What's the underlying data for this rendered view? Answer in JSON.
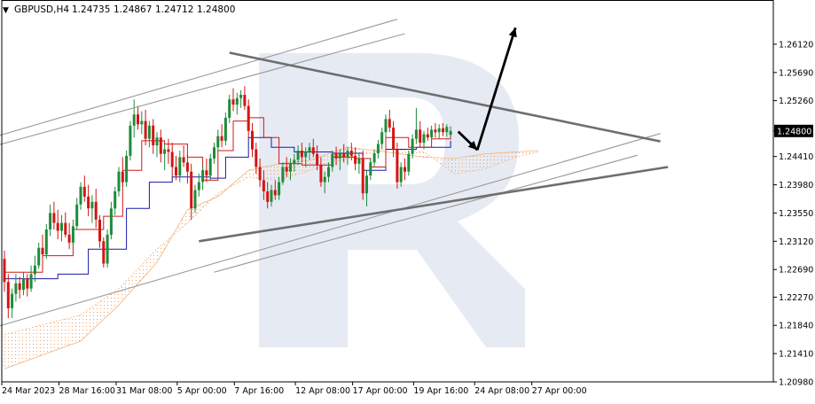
{
  "header": {
    "symbol": "GBPUSD,H4",
    "open": "1.24735",
    "high": "1.24867",
    "low": "1.24712",
    "close": "1.24800",
    "triangle": "▼"
  },
  "chart_data": {
    "type": "candlestick",
    "title": "GBPUSD,H4",
    "ylim": [
      1.2098,
      1.2655
    ],
    "y_ticks": [
      "1.26120",
      "1.25690",
      "1.25260",
      "1.24800",
      "1.24410",
      "1.23980",
      "1.23550",
      "1.23120",
      "1.22690",
      "1.22270",
      "1.21840",
      "1.21410",
      "1.20980"
    ],
    "current_price": "1.24800",
    "x_ticks": [
      "24 Mar 2023",
      "28 Mar 16:00",
      "31 Mar 08:00",
      "5 Apr 00:00",
      "7 Apr 16:00",
      "12 Apr 08:00",
      "17 Apr 00:00",
      "19 Apr 16:00",
      "24 Apr 08:00",
      "27 Apr 00:00"
    ],
    "bars_total": 118,
    "x_tick_bars": [
      0,
      15,
      30,
      46,
      61,
      77,
      92,
      108,
      124,
      139
    ],
    "candles": [
      [
        1.2285,
        1.2298,
        1.2235,
        1.225
      ],
      [
        1.225,
        1.2262,
        1.2195,
        1.221
      ],
      [
        1.221,
        1.224,
        1.2195,
        1.2232
      ],
      [
        1.2232,
        1.2262,
        1.222,
        1.2248
      ],
      [
        1.2248,
        1.2258,
        1.2225,
        1.2238
      ],
      [
        1.2238,
        1.2265,
        1.223,
        1.2255
      ],
      [
        1.2255,
        1.2262,
        1.2228,
        1.224
      ],
      [
        1.224,
        1.2275,
        1.2235,
        1.2262
      ],
      [
        1.2262,
        1.229,
        1.225,
        1.2275
      ],
      [
        1.2275,
        1.231,
        1.227,
        1.2302
      ],
      [
        1.2302,
        1.2322,
        1.2288,
        1.2292
      ],
      [
        1.2292,
        1.2338,
        1.2285,
        1.233
      ],
      [
        1.233,
        1.2368,
        1.232,
        1.2355
      ],
      [
        1.2355,
        1.2372,
        1.233,
        1.234
      ],
      [
        1.234,
        1.236,
        1.2315,
        1.2328
      ],
      [
        1.2328,
        1.2352,
        1.2312,
        1.234
      ],
      [
        1.234,
        1.2356,
        1.2318,
        1.2322
      ],
      [
        1.2322,
        1.234,
        1.23,
        1.231
      ],
      [
        1.231,
        1.2345,
        1.2305,
        1.2335
      ],
      [
        1.2335,
        1.2378,
        1.233,
        1.2368
      ],
      [
        1.2368,
        1.2402,
        1.236,
        1.2395
      ],
      [
        1.2395,
        1.2412,
        1.2372,
        1.238
      ],
      [
        1.238,
        1.2398,
        1.235,
        1.2362
      ],
      [
        1.2362,
        1.2382,
        1.234,
        1.2372
      ],
      [
        1.2372,
        1.2392,
        1.2332,
        1.2345
      ],
      [
        1.2345,
        1.2352,
        1.2302,
        1.2312
      ],
      [
        1.2312,
        1.2318,
        1.2272,
        1.2278
      ],
      [
        1.2278,
        1.233,
        1.2272,
        1.2322
      ],
      [
        1.2322,
        1.2372,
        1.2315,
        1.2362
      ],
      [
        1.2362,
        1.2395,
        1.2352,
        1.2388
      ],
      [
        1.2388,
        1.2425,
        1.238,
        1.2418
      ],
      [
        1.2418,
        1.244,
        1.2395,
        1.2402
      ],
      [
        1.2402,
        1.245,
        1.2395,
        1.2442
      ],
      [
        1.2442,
        1.2495,
        1.2435,
        1.2488
      ],
      [
        1.2488,
        1.2528,
        1.247,
        1.2505
      ],
      [
        1.2505,
        1.2518,
        1.2482,
        1.249
      ],
      [
        1.249,
        1.251,
        1.2475,
        1.2495
      ],
      [
        1.2495,
        1.2512,
        1.2458,
        1.2468
      ],
      [
        1.2468,
        1.2495,
        1.2455,
        1.2488
      ],
      [
        1.2488,
        1.2498,
        1.2445,
        1.2458
      ],
      [
        1.2458,
        1.2478,
        1.244,
        1.247
      ],
      [
        1.247,
        1.2482,
        1.2432,
        1.2445
      ],
      [
        1.2445,
        1.246,
        1.242,
        1.2452
      ],
      [
        1.2452,
        1.2468,
        1.243,
        1.2448
      ],
      [
        1.2448,
        1.2462,
        1.241,
        1.2425
      ],
      [
        1.2425,
        1.2442,
        1.2405,
        1.2412
      ],
      [
        1.2412,
        1.245,
        1.2402,
        1.244
      ],
      [
        1.244,
        1.2458,
        1.2425,
        1.2432
      ],
      [
        1.2432,
        1.2445,
        1.24,
        1.2418
      ],
      [
        1.2418,
        1.243,
        1.2345,
        1.2362
      ],
      [
        1.2362,
        1.2398,
        1.2355,
        1.239
      ],
      [
        1.239,
        1.2415,
        1.238,
        1.2402
      ],
      [
        1.2402,
        1.2428,
        1.239,
        1.242
      ],
      [
        1.242,
        1.2438,
        1.2402,
        1.2412
      ],
      [
        1.2412,
        1.2445,
        1.2405,
        1.2438
      ],
      [
        1.2438,
        1.2462,
        1.243,
        1.2455
      ],
      [
        1.2455,
        1.2482,
        1.2448,
        1.2472
      ],
      [
        1.2472,
        1.249,
        1.2455,
        1.2465
      ],
      [
        1.2465,
        1.2508,
        1.2458,
        1.25
      ],
      [
        1.25,
        1.2535,
        1.2492,
        1.2528
      ],
      [
        1.2528,
        1.2545,
        1.251,
        1.252
      ],
      [
        1.252,
        1.2538,
        1.2505,
        1.253
      ],
      [
        1.253,
        1.2542,
        1.2515,
        1.2535
      ],
      [
        1.2535,
        1.2548,
        1.2512,
        1.2518
      ],
      [
        1.2518,
        1.2528,
        1.247,
        1.248
      ],
      [
        1.248,
        1.2492,
        1.244,
        1.2452
      ],
      [
        1.2452,
        1.2462,
        1.2415,
        1.2425
      ],
      [
        1.2425,
        1.2438,
        1.2395,
        1.2405
      ],
      [
        1.2405,
        1.242,
        1.2375,
        1.2388
      ],
      [
        1.2388,
        1.2402,
        1.2362,
        1.2372
      ],
      [
        1.2372,
        1.2398,
        1.2365,
        1.239
      ],
      [
        1.239,
        1.2405,
        1.2375,
        1.2382
      ],
      [
        1.2382,
        1.241,
        1.2375,
        1.2402
      ],
      [
        1.2402,
        1.2432,
        1.2398,
        1.2425
      ],
      [
        1.2425,
        1.244,
        1.241,
        1.2418
      ],
      [
        1.2418,
        1.2438,
        1.2405,
        1.243
      ],
      [
        1.243,
        1.2445,
        1.2418,
        1.2436
      ],
      [
        1.2436,
        1.2458,
        1.2428,
        1.245
      ],
      [
        1.245,
        1.2462,
        1.2432,
        1.244
      ],
      [
        1.244,
        1.2455,
        1.2425,
        1.2448
      ],
      [
        1.2448,
        1.2462,
        1.2436,
        1.2455
      ],
      [
        1.2455,
        1.2468,
        1.244,
        1.2445
      ],
      [
        1.2445,
        1.2458,
        1.242,
        1.2428
      ],
      [
        1.2428,
        1.244,
        1.2395,
        1.2402
      ],
      [
        1.2402,
        1.2418,
        1.2385,
        1.241
      ],
      [
        1.241,
        1.2432,
        1.2402,
        1.2425
      ],
      [
        1.2425,
        1.245,
        1.2418,
        1.2445
      ],
      [
        1.2445,
        1.2456,
        1.2428,
        1.2438
      ],
      [
        1.2438,
        1.2452,
        1.242,
        1.2446
      ],
      [
        1.2446,
        1.246,
        1.2432,
        1.244
      ],
      [
        1.244,
        1.2456,
        1.2428,
        1.245
      ],
      [
        1.245,
        1.2462,
        1.2435,
        1.2442
      ],
      [
        1.2442,
        1.2455,
        1.242,
        1.243
      ],
      [
        1.243,
        1.2445,
        1.2415,
        1.2438
      ],
      [
        1.2438,
        1.245,
        1.2375,
        1.2385
      ],
      [
        1.2385,
        1.242,
        1.2365,
        1.2412
      ],
      [
        1.2412,
        1.2438,
        1.2405,
        1.2432
      ],
      [
        1.2432,
        1.2452,
        1.2425,
        1.2446
      ],
      [
        1.2446,
        1.2466,
        1.2438,
        1.246
      ],
      [
        1.246,
        1.2485,
        1.2452,
        1.2478
      ],
      [
        1.2478,
        1.2505,
        1.247,
        1.2498
      ],
      [
        1.2498,
        1.2512,
        1.2478,
        1.2485
      ],
      [
        1.2485,
        1.2495,
        1.244,
        1.2452
      ],
      [
        1.2452,
        1.2462,
        1.2392,
        1.2402
      ],
      [
        1.2402,
        1.2432,
        1.2395,
        1.2425
      ],
      [
        1.2425,
        1.2438,
        1.2405,
        1.2418
      ],
      [
        1.2418,
        1.245,
        1.2412,
        1.2445
      ],
      [
        1.2445,
        1.2475,
        1.2438,
        1.2468
      ],
      [
        1.2468,
        1.2515,
        1.246,
        1.2482
      ],
      [
        1.2482,
        1.2495,
        1.2455,
        1.2462
      ],
      [
        1.2462,
        1.248,
        1.2452,
        1.2475
      ],
      [
        1.2475,
        1.2485,
        1.2465,
        1.247
      ],
      [
        1.247,
        1.2488,
        1.2462,
        1.2482
      ],
      [
        1.2482,
        1.2492,
        1.247,
        1.2478
      ],
      [
        1.2478,
        1.249,
        1.2468,
        1.2484
      ],
      [
        1.2484,
        1.2492,
        1.2472,
        1.2478
      ],
      [
        1.2478,
        1.249,
        1.2471,
        1.2486
      ],
      [
        1.2474,
        1.2487,
        1.2471,
        1.248
      ]
    ],
    "tenkan": [
      [
        0,
        1.2265
      ],
      [
        10,
        1.229
      ],
      [
        18,
        1.233
      ],
      [
        26,
        1.235
      ],
      [
        31,
        1.242
      ],
      [
        36,
        1.2465
      ],
      [
        42,
        1.246
      ],
      [
        48,
        1.244
      ],
      [
        52,
        1.2405
      ],
      [
        56,
        1.245
      ],
      [
        60,
        1.2495
      ],
      [
        64,
        1.25
      ],
      [
        68,
        1.247
      ],
      [
        72,
        1.243
      ],
      [
        78,
        1.2428
      ],
      [
        86,
        1.244
      ],
      [
        92,
        1.2438
      ],
      [
        96,
        1.2425
      ],
      [
        100,
        1.247
      ],
      [
        106,
        1.2455
      ],
      [
        112,
        1.2468
      ],
      [
        117,
        1.2478
      ]
    ],
    "kijun": [
      [
        0,
        1.2255
      ],
      [
        14,
        1.2262
      ],
      [
        22,
        1.23
      ],
      [
        32,
        1.2362
      ],
      [
        38,
        1.2402
      ],
      [
        44,
        1.241
      ],
      [
        54,
        1.2408
      ],
      [
        58,
        1.244
      ],
      [
        64,
        1.247
      ],
      [
        70,
        1.2455
      ],
      [
        76,
        1.2448
      ],
      [
        86,
        1.2446
      ],
      [
        94,
        1.242
      ],
      [
        100,
        1.2452
      ],
      [
        108,
        1.2455
      ],
      [
        117,
        1.2465
      ]
    ],
    "cloud": {
      "from_bar": 0,
      "to_bar": 140,
      "span_a": [
        [
          0,
          1.2118
        ],
        [
          20,
          1.216
        ],
        [
          30,
          1.2215
        ],
        [
          40,
          1.228
        ],
        [
          48,
          1.236
        ],
        [
          56,
          1.238
        ],
        [
          64,
          1.242
        ],
        [
          72,
          1.243
        ],
        [
          80,
          1.2435
        ],
        [
          90,
          1.2455
        ],
        [
          100,
          1.2448
        ],
        [
          110,
          1.244
        ],
        [
          118,
          1.2438
        ],
        [
          126,
          1.2445
        ],
        [
          134,
          1.2448
        ],
        [
          140,
          1.245
        ]
      ],
      "span_b": [
        [
          0,
          1.217
        ],
        [
          20,
          1.22
        ],
        [
          30,
          1.224
        ],
        [
          40,
          1.23
        ],
        [
          48,
          1.234
        ],
        [
          56,
          1.2385
        ],
        [
          64,
          1.241
        ],
        [
          72,
          1.2405
        ],
        [
          80,
          1.242
        ],
        [
          90,
          1.2438
        ],
        [
          100,
          1.2452
        ],
        [
          110,
          1.2448
        ],
        [
          118,
          1.2415
        ],
        [
          126,
          1.2422
        ],
        [
          134,
          1.244
        ],
        [
          140,
          1.2448
        ]
      ]
    },
    "trendlines": [
      {
        "kind": "thin",
        "from": [
          -2,
          1.2472
        ],
        "to": [
          103,
          1.265
        ]
      },
      {
        "kind": "thin",
        "from": [
          -2,
          1.2458
        ],
        "to": [
          105,
          1.2628
        ]
      },
      {
        "kind": "thin",
        "from": [
          -2,
          1.2182
        ],
        "to": [
          172,
          1.2476
        ]
      },
      {
        "kind": "thin",
        "from": [
          55,
          1.2265
        ],
        "to": [
          166,
          1.2443
        ]
      },
      {
        "kind": "thick",
        "from": [
          51,
          1.2312
        ],
        "to": [
          174,
          1.2425
        ]
      },
      {
        "kind": "thick",
        "from": [
          59,
          1.2599
        ],
        "to": [
          172,
          1.2464
        ]
      }
    ],
    "arrows": [
      {
        "from": [
          119,
          1.2479
        ],
        "to": [
          124,
          1.2451
        ]
      },
      {
        "from": [
          124,
          1.2451
        ],
        "to": [
          134,
          1.2637
        ]
      }
    ],
    "watermark": "R"
  }
}
